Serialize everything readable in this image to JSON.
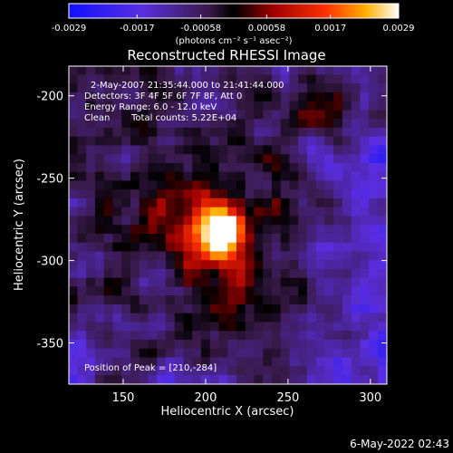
{
  "chart_data": {
    "type": "heatmap",
    "title": "Reconstructed RHESSI Image",
    "xlabel": "Heliocentric X (arcsec)",
    "ylabel": "Heliocentric Y (arcsec)",
    "xlim": [
      117,
      310
    ],
    "ylim": [
      -375,
      -182
    ],
    "x_ticks": [
      150,
      200,
      250,
      300
    ],
    "y_ticks": [
      -200,
      -250,
      -300,
      -350
    ],
    "colorbar": {
      "min": -0.0029,
      "max": 0.0029,
      "tick_values": [
        -0.0029,
        -0.0017,
        -0.00058,
        0.00058,
        0.0017,
        0.0029
      ],
      "tick_labels": [
        "-0.0029",
        "-0.0017",
        "-0.00058",
        "0.00058",
        "0.0017",
        "0.0029"
      ],
      "unit_label": "(photons cm⁻² s⁻¹ asec⁻²)",
      "colormap": "blue-purple-red-yellow-white"
    },
    "peak": {
      "x": 210,
      "y": -284,
      "value": 0.0029
    },
    "annotations": {
      "time_range": "2-May-2007 21:35:44.000 to 21:41:44.000",
      "detectors": "Detectors: 3F 4F 5F 6F 7F 8F, Att 0",
      "energy": "Energy Range: 6.0 - 12.0 keV",
      "algorithm": "Clean",
      "counts": "Total counts: 5.22E+04",
      "peak_label": "Position of Peak = [210,-284]"
    },
    "grid": false
  },
  "timestamp": "6-May-2022 02:43"
}
